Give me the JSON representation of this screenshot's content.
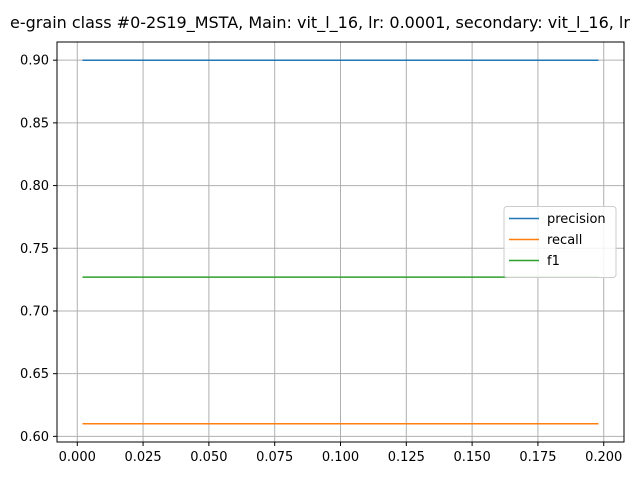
{
  "chart_data": {
    "type": "line",
    "title": "e-grain class #0-2S19_MSTA, Main: vit_l_16, lr: 0.0001, secondary: vit_l_16, lr",
    "xlabel": "",
    "ylabel": "",
    "xlim": [
      -0.0077,
      0.2077
    ],
    "ylim": [
      0.5955,
      0.9145
    ],
    "x_ticks": [
      "0.000",
      "0.025",
      "0.050",
      "0.075",
      "0.100",
      "0.125",
      "0.150",
      "0.175",
      "0.200"
    ],
    "y_ticks": [
      "0.60",
      "0.65",
      "0.70",
      "0.75",
      "0.80",
      "0.85",
      "0.90"
    ],
    "x": [
      0.002,
      0.198
    ],
    "series": [
      {
        "name": "precision",
        "color": "#1f77b4",
        "values": [
          0.9,
          0.9
        ]
      },
      {
        "name": "recall",
        "color": "#ff7f0e",
        "values": [
          0.61,
          0.61
        ]
      },
      {
        "name": "f1",
        "color": "#2ca02c",
        "values": [
          0.727,
          0.727
        ]
      }
    ],
    "grid": true,
    "legend_position": "center-right"
  }
}
